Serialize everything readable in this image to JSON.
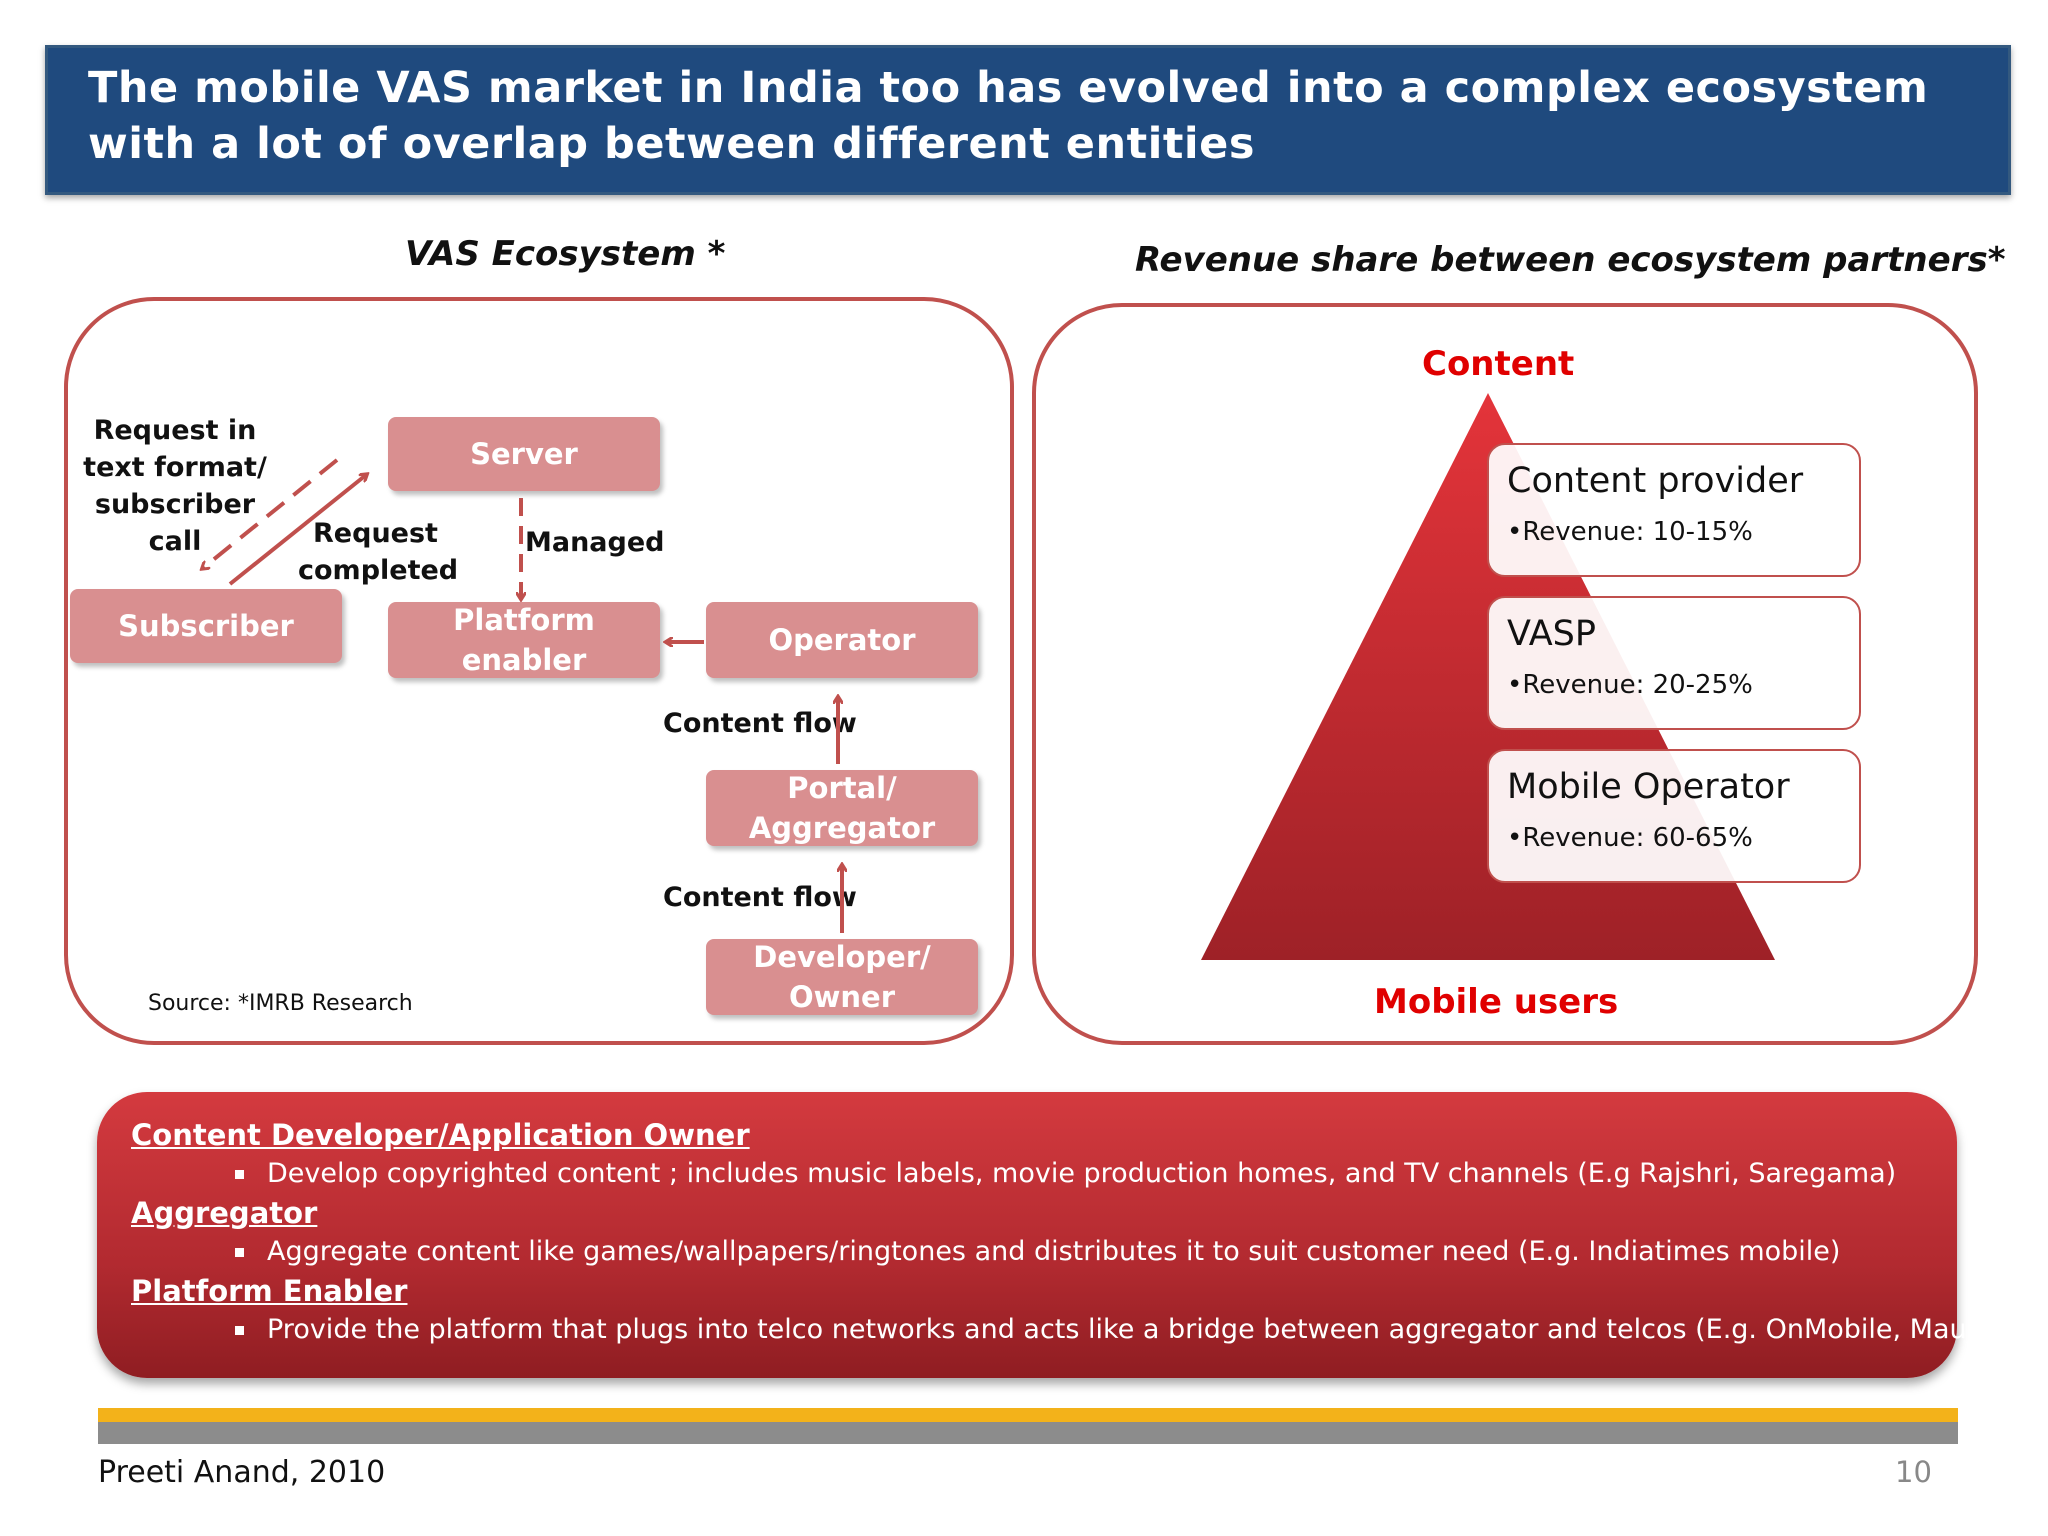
{
  "slide": {
    "title": "The mobile VAS market in India too has evolved into a complex ecosystem with a lot of overlap between different entities"
  },
  "ecosystem": {
    "heading": "VAS Ecosystem *",
    "nodes": {
      "server": "Server",
      "subscriber": "Subscriber",
      "platform_enabler": "Platform enabler",
      "operator": "Operator",
      "portal_aggregator": "Portal/ Aggregator",
      "developer_owner": "Developer/ Owner"
    },
    "labels": {
      "request_text": "Request in text format/ subscriber call",
      "request_completed": "Request completed",
      "managed": "Managed",
      "content_flow_1": "Content flow",
      "content_flow_2": "Content flow"
    },
    "source": "Source: *IMRB Research"
  },
  "revenue": {
    "heading": "Revenue share between ecosystem partners*",
    "top_label": "Content",
    "bottom_label": "Mobile users",
    "boxes": [
      {
        "name": "Content provider",
        "revenue": "•Revenue: 10-15%"
      },
      {
        "name": "VASP",
        "revenue": "•Revenue: 20-25%"
      },
      {
        "name": "Mobile Operator",
        "revenue": "•Revenue: 60-65%"
      }
    ]
  },
  "definitions": [
    {
      "heading": "Content Developer/Application Owner",
      "item": "Develop copyrighted content ; includes music labels, movie production homes, and TV channels (E.g Rajshri, Saregama)"
    },
    {
      "heading": "Aggregator",
      "item": "Aggregate content like games/wallpapers/ringtones and distributes it to suit customer need (E.g. Indiatimes mobile)"
    },
    {
      "heading": "Platform Enabler",
      "item": "Provide the platform that plugs into telco networks and acts like a bridge between aggregator and telcos (E.g. OnMobile, Mauj)"
    }
  ],
  "footer": {
    "author": "Preeti Anand, 2010",
    "page": "10"
  },
  "colors": {
    "title_bg": "#1f4a7e",
    "panel_border": "#c0504d",
    "node_fill": "#d98f90",
    "accent_red": "#e00000",
    "stripe_gold": "#f3b21a",
    "stripe_gray": "#8c8c8c"
  }
}
